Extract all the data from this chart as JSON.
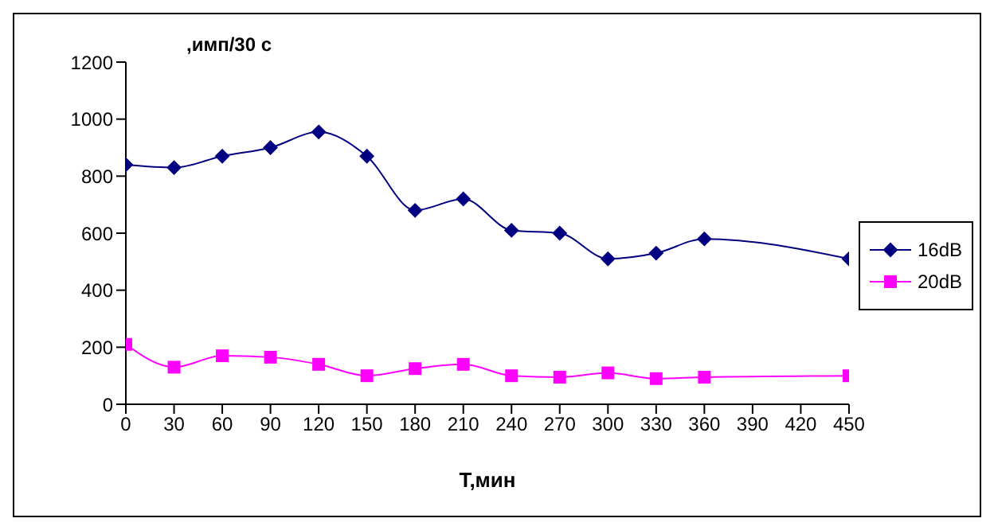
{
  "chart_data": {
    "type": "line",
    "xlabel": "T,мин",
    "ylabel": ",имп/30 с",
    "xlim": [
      0,
      450
    ],
    "xticks": [
      0,
      30,
      60,
      90,
      120,
      150,
      180,
      210,
      240,
      270,
      300,
      330,
      360,
      390,
      420,
      450
    ],
    "ylim": [
      0,
      1200
    ],
    "yticks": [
      0,
      200,
      400,
      600,
      800,
      1000,
      1200
    ],
    "grid": false,
    "legend": "right",
    "series": [
      {
        "name": "16dB",
        "color": "#000080",
        "marker": "diamond",
        "x": [
          0,
          30,
          60,
          90,
          120,
          150,
          180,
          210,
          240,
          270,
          300,
          330,
          360,
          450
        ],
        "values": [
          840,
          830,
          870,
          900,
          955,
          870,
          680,
          720,
          610,
          600,
          510,
          530,
          580,
          510
        ]
      },
      {
        "name": "20dB",
        "color": "#ff00ff",
        "marker": "square",
        "x": [
          0,
          30,
          60,
          90,
          120,
          150,
          180,
          210,
          240,
          270,
          300,
          330,
          360,
          450
        ],
        "values": [
          210,
          130,
          170,
          165,
          140,
          100,
          125,
          140,
          100,
          95,
          110,
          90,
          95,
          100
        ]
      }
    ]
  }
}
